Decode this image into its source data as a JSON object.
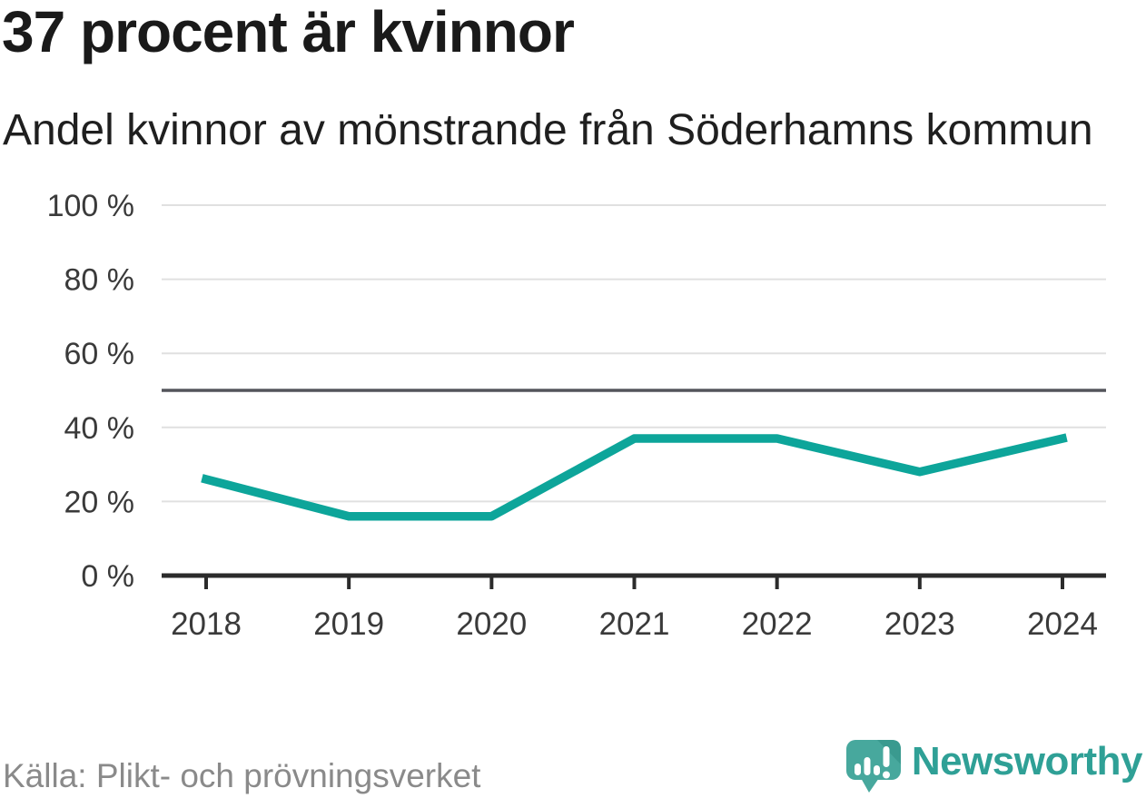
{
  "header": {
    "title": "37 procent är kvinnor",
    "subtitle": "Andel kvinnor av mönstrande från Söderhamns kommun"
  },
  "chart_data": {
    "type": "line",
    "title": "37 procent är kvinnor",
    "subtitle": "Andel kvinnor av mönstrande från Söderhamns kommun",
    "x_labels": [
      "2018",
      "2019",
      "2020",
      "2021",
      "2022",
      "2023",
      "2024"
    ],
    "series": [
      {
        "values": [
          26,
          16,
          16,
          37,
          37,
          28,
          37
        ]
      }
    ],
    "ylim": [
      0,
      100
    ],
    "yticks": [
      0,
      20,
      40,
      60,
      80,
      100
    ],
    "ytick_suffix": " %",
    "reference_line": 50,
    "grid": true,
    "legend": "none"
  },
  "footer": {
    "source": "Källa: Plikt- och prövningsverket",
    "brand": "Newsworthy"
  },
  "colors": {
    "line": "#0da59a",
    "reference_line": "#54555b",
    "grid": "#e0e0e0",
    "axis": "#2b2b2b",
    "tick_text": "#3a3a3a",
    "title_text": "#1a1a1a",
    "muted_text": "#8a8a8a",
    "logo": "#47a89d",
    "logo_dark": "#3a9a8f",
    "wordmark": "#2fa096"
  }
}
